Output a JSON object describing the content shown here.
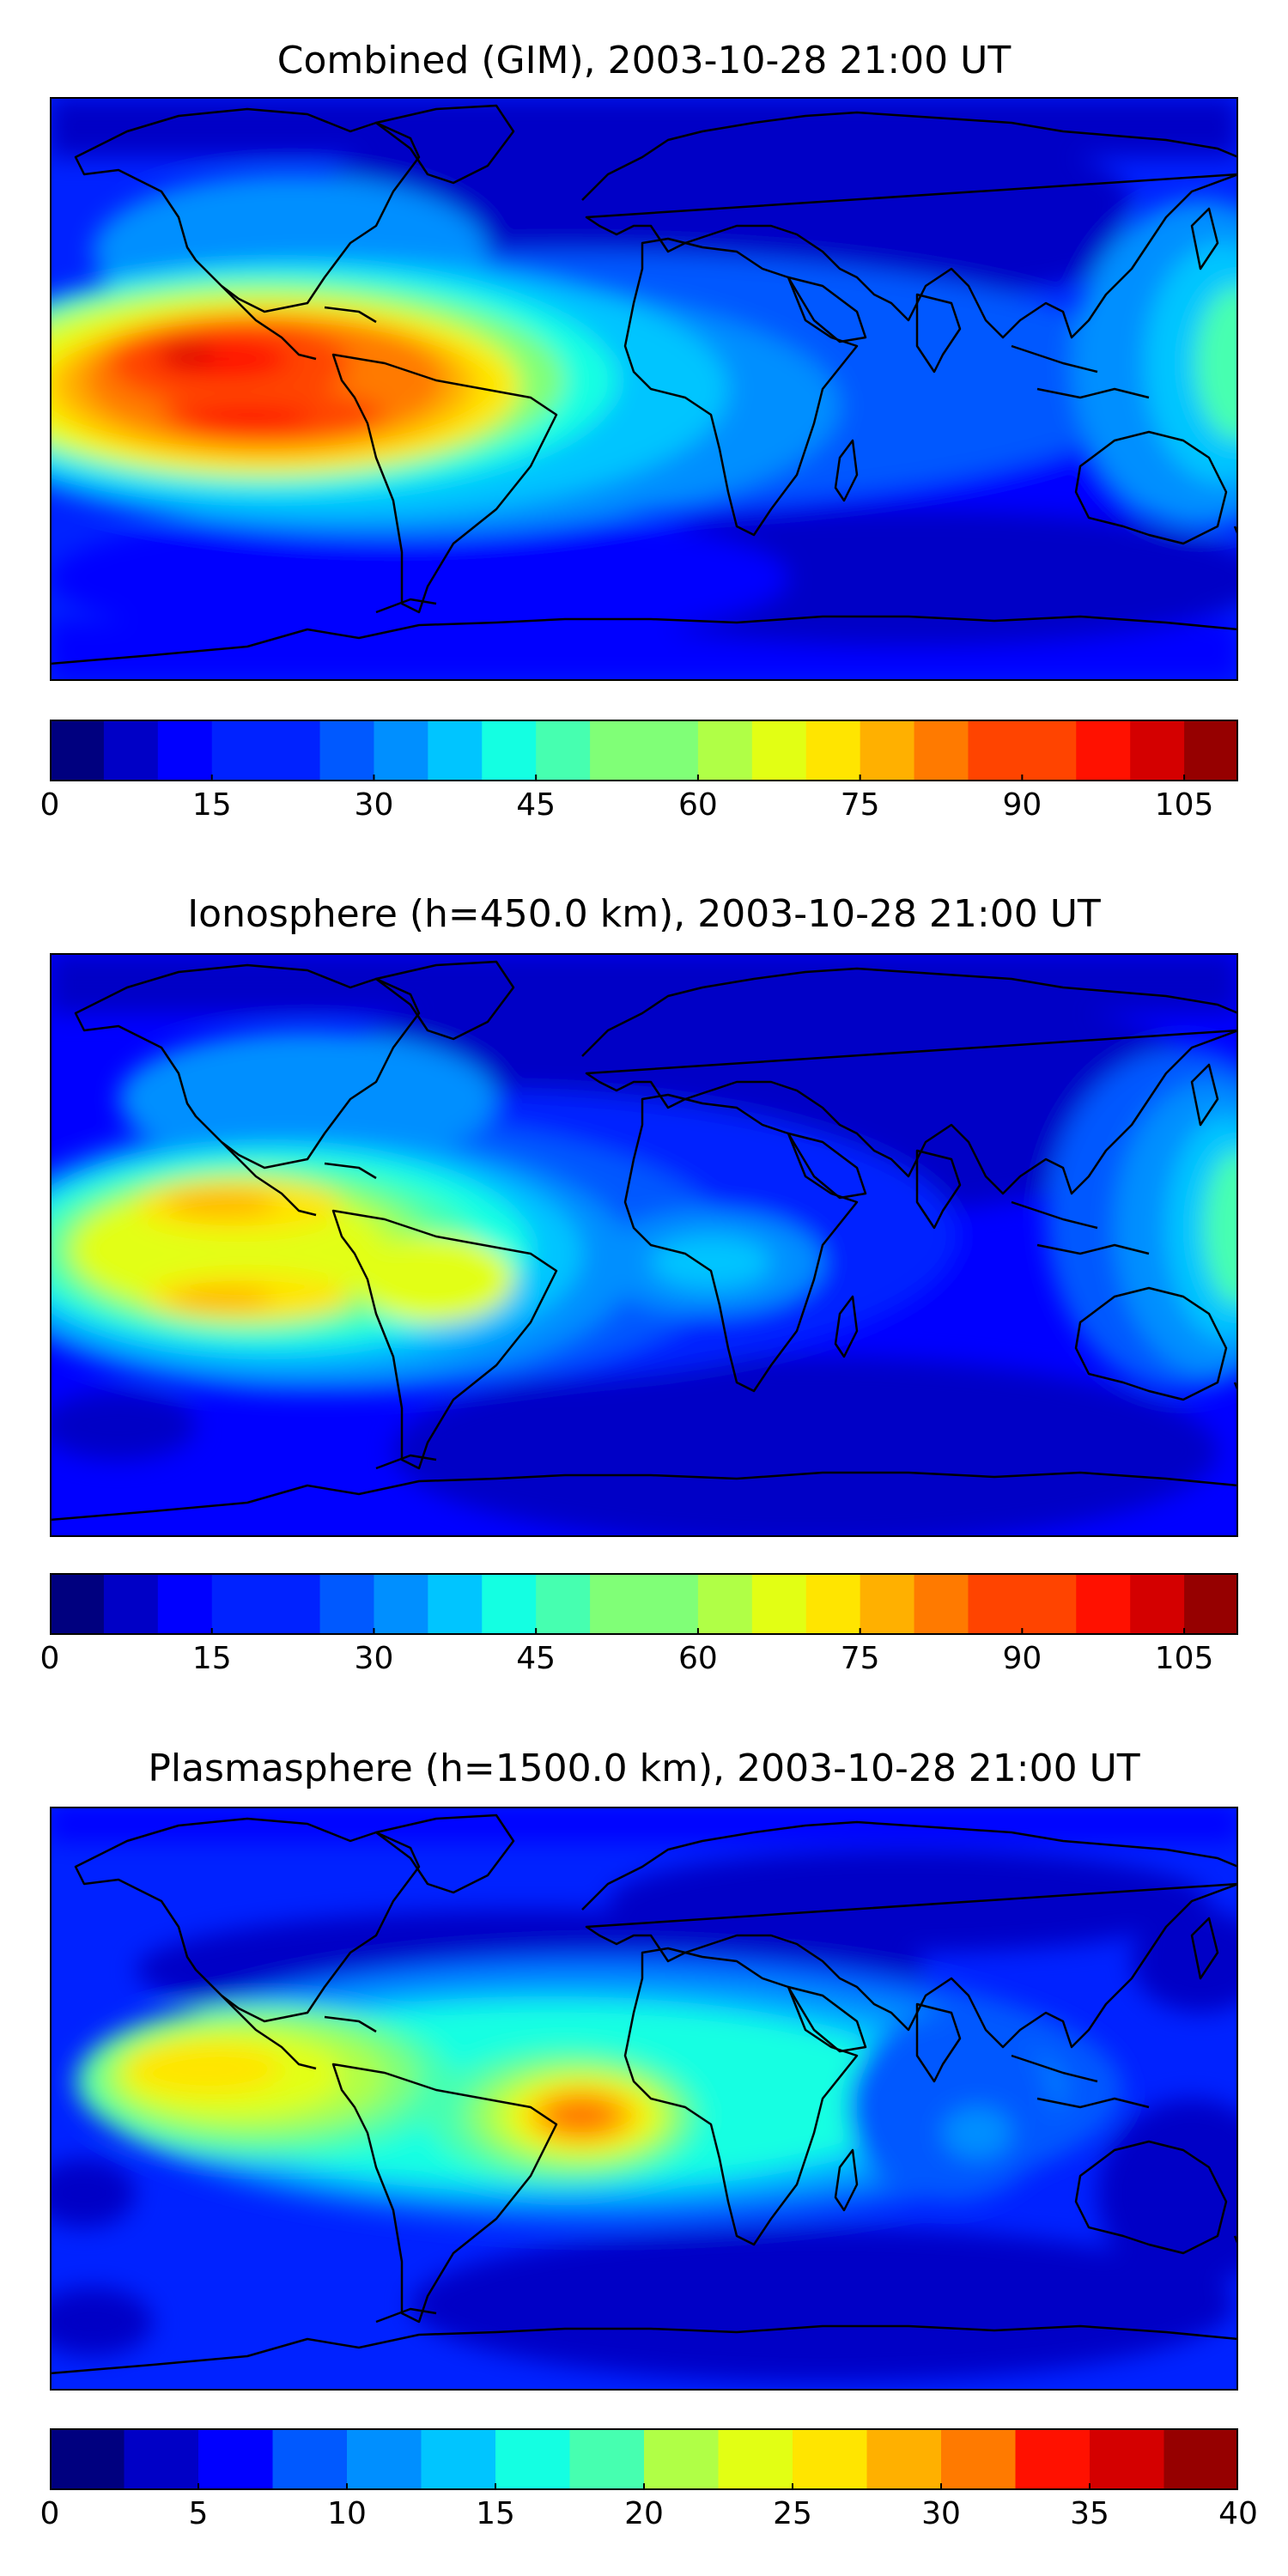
{
  "panels": [
    {
      "title": "Combined (GIM), 2003-10-28 21:00 UT",
      "colorbar": {
        "min": 0,
        "max": 110,
        "step": 5,
        "tick_labels": [
          "0",
          "15",
          "30",
          "45",
          "60",
          "75",
          "90",
          "105"
        ],
        "tick_values": [
          0,
          15,
          30,
          45,
          60,
          75,
          90,
          105
        ]
      }
    },
    {
      "title": "Ionosphere  (h=450.0 km), 2003-10-28 21:00 UT",
      "colorbar": {
        "min": 0,
        "max": 110,
        "step": 5,
        "tick_labels": [
          "0",
          "15",
          "30",
          "45",
          "60",
          "75",
          "90",
          "105"
        ],
        "tick_values": [
          0,
          15,
          30,
          45,
          60,
          75,
          90,
          105
        ]
      }
    },
    {
      "title": "Plasmasphere (h=1500.0 km), 2003-10-28 21:00 UT",
      "colorbar": {
        "min": 0,
        "max": 40,
        "step": 2.5,
        "tick_labels": [
          "0",
          "5",
          "10",
          "15",
          "20",
          "25",
          "30",
          "35",
          "40"
        ],
        "tick_values": [
          0,
          5,
          10,
          15,
          20,
          25,
          30,
          35,
          40
        ]
      }
    }
  ],
  "colormap": [
    "#00007f",
    "#0000c6",
    "#0000ff",
    "#0022ff",
    "#0059ff",
    "#008fff",
    "#00c5ff",
    "#14ffe2",
    "#46ffb0",
    "#80ff77",
    "#b0ff46",
    "#e2ff14",
    "#ffe500",
    "#ffb000",
    "#ff7a00",
    "#ff4400",
    "#ff1100",
    "#d40000",
    "#960000"
  ]
}
